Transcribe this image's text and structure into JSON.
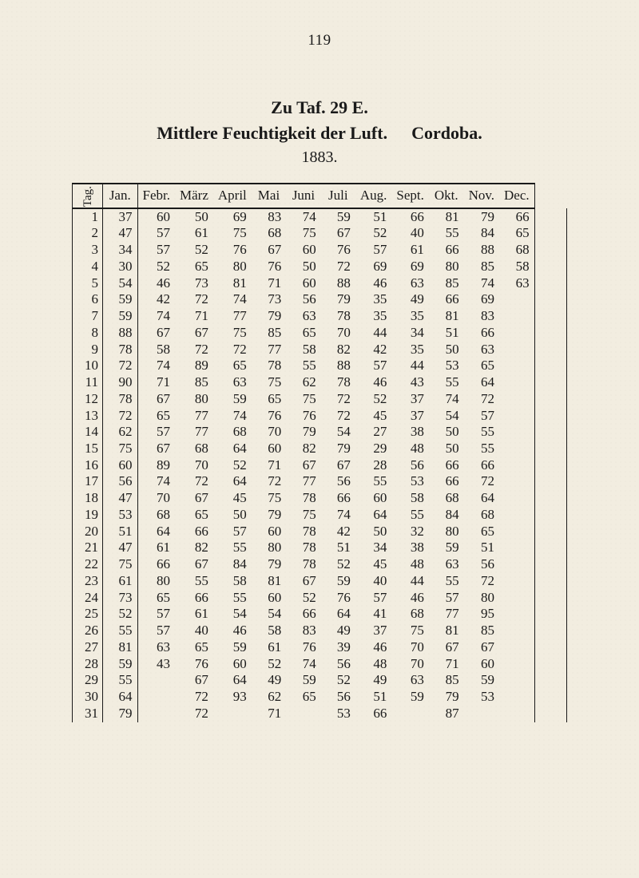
{
  "page_number": "119",
  "title_line1": "Zu Taf. 29 E.",
  "title_line2_a": "Mittlere Feuchtigkeit der Luft.",
  "title_line2_b": "Cordoba.",
  "year": "1883.",
  "background_color": "#f2ede0",
  "text_color": "#1a1a1a",
  "rule_color": "#1a1a1a",
  "font_family": "Times New Roman",
  "table": {
    "header_fontsize": 17,
    "cell_fontsize": 17,
    "row_header_label": "Tag.",
    "columns": [
      "Jan.",
      "Febr.",
      "März",
      "April",
      "Mai",
      "Juni",
      "Juli",
      "Aug.",
      "Sept.",
      "Okt.",
      "Nov.",
      "Dec."
    ],
    "rows": [
      [
        "1",
        "37",
        "60",
        "50",
        "69",
        "83",
        "74",
        "59",
        "51",
        "66",
        "81",
        "79",
        "66"
      ],
      [
        "2",
        "47",
        "57",
        "61",
        "75",
        "68",
        "75",
        "67",
        "52",
        "40",
        "55",
        "84",
        "65"
      ],
      [
        "3",
        "34",
        "57",
        "52",
        "76",
        "67",
        "60",
        "76",
        "57",
        "61",
        "66",
        "88",
        "68"
      ],
      [
        "4",
        "30",
        "52",
        "65",
        "80",
        "76",
        "50",
        "72",
        "69",
        "69",
        "80",
        "85",
        "58"
      ],
      [
        "5",
        "54",
        "46",
        "73",
        "81",
        "71",
        "60",
        "88",
        "46",
        "63",
        "85",
        "74",
        "63"
      ],
      [
        "6",
        "59",
        "42",
        "72",
        "74",
        "73",
        "56",
        "79",
        "35",
        "49",
        "66",
        "69",
        ""
      ],
      [
        "7",
        "59",
        "74",
        "71",
        "77",
        "79",
        "63",
        "78",
        "35",
        "35",
        "81",
        "83",
        ""
      ],
      [
        "8",
        "88",
        "67",
        "67",
        "75",
        "85",
        "65",
        "70",
        "44",
        "34",
        "51",
        "66",
        ""
      ],
      [
        "9",
        "78",
        "58",
        "72",
        "72",
        "77",
        "58",
        "82",
        "42",
        "35",
        "50",
        "63",
        ""
      ],
      [
        "10",
        "72",
        "74",
        "89",
        "65",
        "78",
        "55",
        "88",
        "57",
        "44",
        "53",
        "65",
        ""
      ],
      [
        "11",
        "90",
        "71",
        "85",
        "63",
        "75",
        "62",
        "78",
        "46",
        "43",
        "55",
        "64",
        ""
      ],
      [
        "12",
        "78",
        "67",
        "80",
        "59",
        "65",
        "75",
        "72",
        "52",
        "37",
        "74",
        "72",
        ""
      ],
      [
        "13",
        "72",
        "65",
        "77",
        "74",
        "76",
        "76",
        "72",
        "45",
        "37",
        "54",
        "57",
        ""
      ],
      [
        "14",
        "62",
        "57",
        "77",
        "68",
        "70",
        "79",
        "54",
        "27",
        "38",
        "50",
        "55",
        ""
      ],
      [
        "15",
        "75",
        "67",
        "68",
        "64",
        "60",
        "82",
        "79",
        "29",
        "48",
        "50",
        "55",
        ""
      ],
      [
        "16",
        "60",
        "89",
        "70",
        "52",
        "71",
        "67",
        "67",
        "28",
        "56",
        "66",
        "66",
        ""
      ],
      [
        "17",
        "56",
        "74",
        "72",
        "64",
        "72",
        "77",
        "56",
        "55",
        "53",
        "66",
        "72",
        ""
      ],
      [
        "18",
        "47",
        "70",
        "67",
        "45",
        "75",
        "78",
        "66",
        "60",
        "58",
        "68",
        "64",
        ""
      ],
      [
        "19",
        "53",
        "68",
        "65",
        "50",
        "79",
        "75",
        "74",
        "64",
        "55",
        "84",
        "68",
        ""
      ],
      [
        "20",
        "51",
        "64",
        "66",
        "57",
        "60",
        "78",
        "42",
        "50",
        "32",
        "80",
        "65",
        ""
      ],
      [
        "21",
        "47",
        "61",
        "82",
        "55",
        "80",
        "78",
        "51",
        "34",
        "38",
        "59",
        "51",
        ""
      ],
      [
        "22",
        "75",
        "66",
        "67",
        "84",
        "79",
        "78",
        "52",
        "45",
        "48",
        "63",
        "56",
        ""
      ],
      [
        "23",
        "61",
        "80",
        "55",
        "58",
        "81",
        "67",
        "59",
        "40",
        "44",
        "55",
        "72",
        ""
      ],
      [
        "24",
        "73",
        "65",
        "66",
        "55",
        "60",
        "52",
        "76",
        "57",
        "46",
        "57",
        "80",
        ""
      ],
      [
        "25",
        "52",
        "57",
        "61",
        "54",
        "54",
        "66",
        "64",
        "41",
        "68",
        "77",
        "95",
        ""
      ],
      [
        "26",
        "55",
        "57",
        "40",
        "46",
        "58",
        "83",
        "49",
        "37",
        "75",
        "81",
        "85",
        ""
      ],
      [
        "27",
        "81",
        "63",
        "65",
        "59",
        "61",
        "76",
        "39",
        "46",
        "70",
        "67",
        "67",
        ""
      ],
      [
        "28",
        "59",
        "43",
        "76",
        "60",
        "52",
        "74",
        "56",
        "48",
        "70",
        "71",
        "60",
        ""
      ],
      [
        "29",
        "55",
        "",
        "67",
        "64",
        "49",
        "59",
        "52",
        "49",
        "63",
        "85",
        "59",
        ""
      ],
      [
        "30",
        "64",
        "",
        "72",
        "93",
        "62",
        "65",
        "56",
        "51",
        "59",
        "79",
        "53",
        ""
      ],
      [
        "31",
        "79",
        "",
        "72",
        "",
        "71",
        "",
        "53",
        "66",
        "",
        "87",
        "",
        ""
      ]
    ]
  }
}
